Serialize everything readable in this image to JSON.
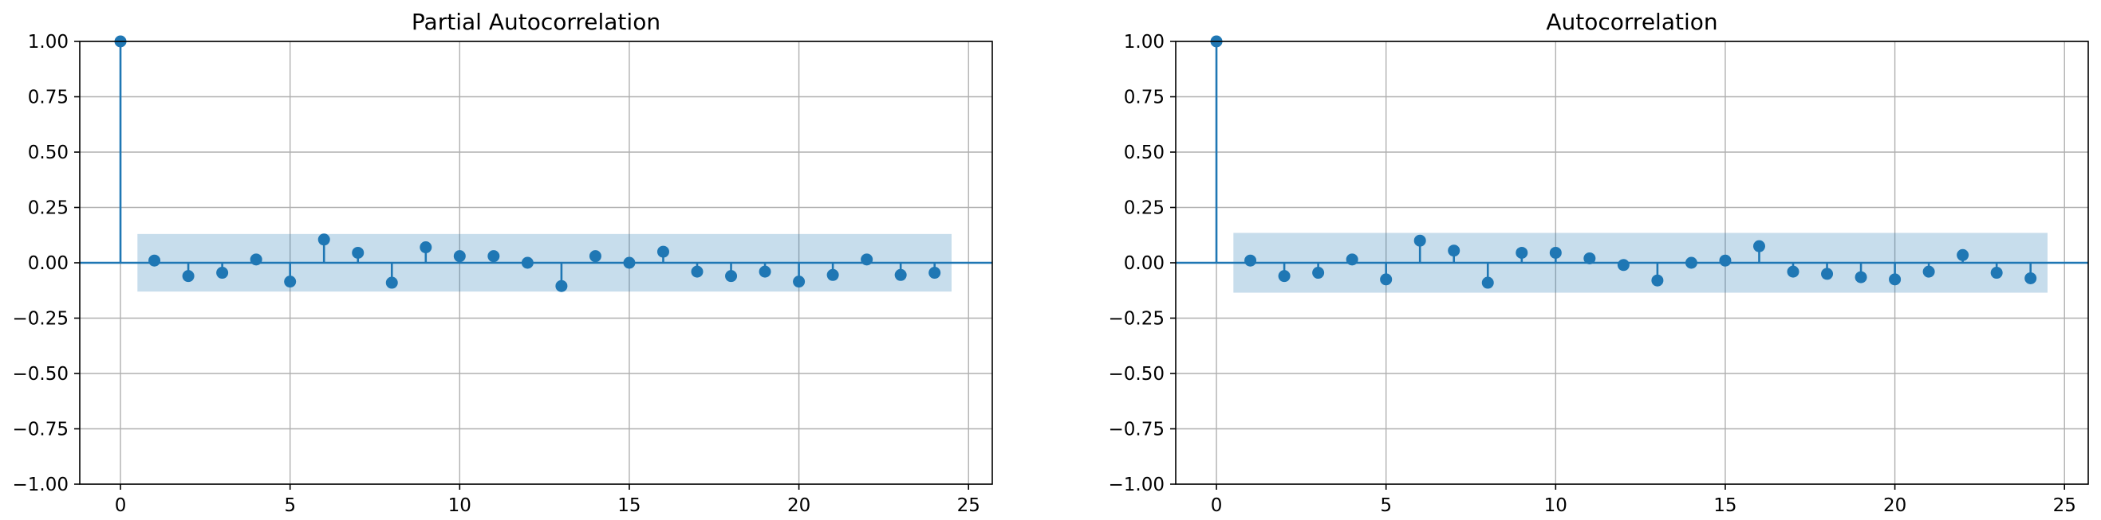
{
  "chart_data": [
    {
      "type": "stem",
      "title": "Partial Autocorrelation",
      "xlabel": "",
      "ylabel": "",
      "xlim": [
        -1.2,
        25.7
      ],
      "ylim": [
        -1.0,
        1.0
      ],
      "xticks": [
        0,
        5,
        10,
        15,
        20,
        25
      ],
      "yticks": [
        -1.0,
        -0.75,
        -0.5,
        -0.25,
        0.0,
        0.25,
        0.5,
        0.75,
        1.0
      ],
      "xtick_labels": [
        "0",
        "5",
        "10",
        "15",
        "20",
        "25"
      ],
      "ytick_labels": [
        "−1.00",
        "−0.75",
        "−0.50",
        "−0.25",
        "0.00",
        "0.25",
        "0.50",
        "0.75",
        "1.00"
      ],
      "grid": true,
      "confidence_band": {
        "x_start": 0.5,
        "x_end": 24.5,
        "upper": 0.13,
        "lower": -0.13
      },
      "colors": {
        "stem": "#1f77b4",
        "band": "#1f77b4",
        "grid": "#b0b0b0"
      },
      "x": [
        0,
        1,
        2,
        3,
        4,
        5,
        6,
        7,
        8,
        9,
        10,
        11,
        12,
        13,
        14,
        15,
        16,
        17,
        18,
        19,
        20,
        21,
        22,
        23,
        24
      ],
      "values": [
        1.0,
        0.01,
        -0.06,
        -0.045,
        0.015,
        -0.085,
        0.105,
        0.045,
        -0.09,
        0.07,
        0.03,
        0.03,
        0.0,
        -0.105,
        0.03,
        0.0,
        0.05,
        -0.04,
        -0.06,
        -0.04,
        -0.085,
        -0.055,
        0.015,
        -0.055,
        -0.045
      ]
    },
    {
      "type": "stem",
      "title": "Autocorrelation",
      "xlabel": "",
      "ylabel": "",
      "xlim": [
        -1.2,
        25.7
      ],
      "ylim": [
        -1.0,
        1.0
      ],
      "xticks": [
        0,
        5,
        10,
        15,
        20,
        25
      ],
      "yticks": [
        -1.0,
        -0.75,
        -0.5,
        -0.25,
        0.0,
        0.25,
        0.5,
        0.75,
        1.0
      ],
      "xtick_labels": [
        "0",
        "5",
        "10",
        "15",
        "20",
        "25"
      ],
      "ytick_labels": [
        "−1.00",
        "−0.75",
        "−0.50",
        "−0.25",
        "0.00",
        "0.25",
        "0.50",
        "0.75",
        "1.00"
      ],
      "grid": true,
      "confidence_band": {
        "x_start": 0.5,
        "x_end": 24.5,
        "upper": 0.135,
        "lower": -0.135
      },
      "colors": {
        "stem": "#1f77b4",
        "band": "#1f77b4",
        "grid": "#b0b0b0"
      },
      "x": [
        0,
        1,
        2,
        3,
        4,
        5,
        6,
        7,
        8,
        9,
        10,
        11,
        12,
        13,
        14,
        15,
        16,
        17,
        18,
        19,
        20,
        21,
        22,
        23,
        24
      ],
      "values": [
        1.0,
        0.01,
        -0.06,
        -0.045,
        0.015,
        -0.075,
        0.1,
        0.055,
        -0.09,
        0.045,
        0.045,
        0.02,
        -0.01,
        -0.08,
        0.0,
        0.01,
        0.075,
        -0.04,
        -0.05,
        -0.065,
        -0.075,
        -0.04,
        0.035,
        -0.045,
        -0.07
      ]
    }
  ]
}
